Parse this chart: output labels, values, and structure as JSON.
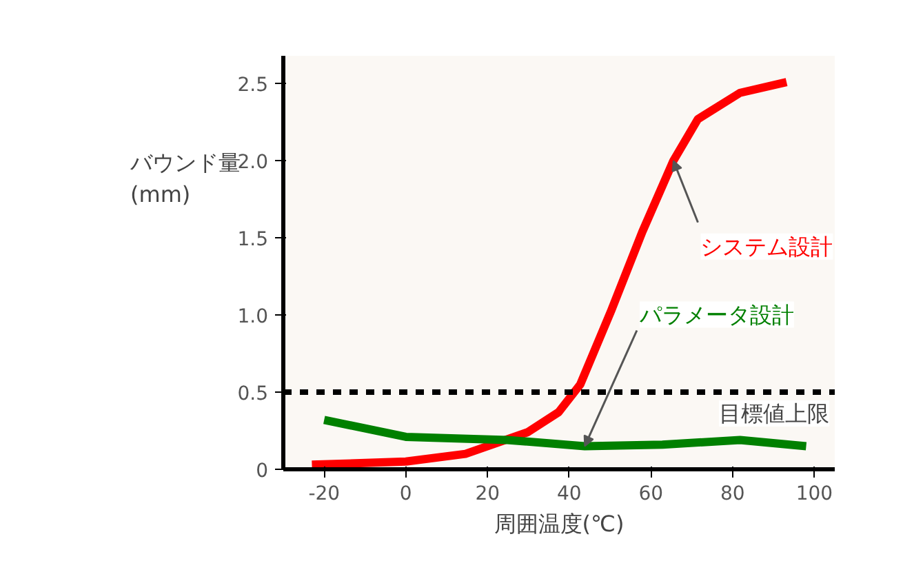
{
  "chart_data": {
    "type": "line",
    "xlabel": "周囲温度(℃)",
    "ylabel": "バウンド量 (mm)",
    "xlim": [
      -30,
      105
    ],
    "ylim": [
      0,
      2.68
    ],
    "xticks": [
      -20,
      0,
      20,
      40,
      60,
      80,
      100
    ],
    "yticks": [
      0,
      0.5,
      {
        "value": 1,
        "label": "1.0"
      },
      1.5,
      {
        "value": 2,
        "label": "2.0"
      },
      2.5
    ],
    "grid": false,
    "legend": false,
    "marker": "none",
    "line_style": "solid",
    "series": [
      {
        "name": "システム設計",
        "color": "#ff0000",
        "x": [
          -23,
          0,
          14.6,
          29.8,
          37.4,
          42.7,
          50.3,
          57.9,
          65.5,
          71.5,
          81.8,
          93.2
        ],
        "values": [
          0.03,
          0.05,
          0.1,
          0.24,
          0.37,
          0.55,
          1.03,
          1.54,
          2.0,
          2.27,
          2.44,
          2.51
        ]
      },
      {
        "name": "パラメータ設計",
        "color": "#008000",
        "x": [
          -20,
          0,
          24.8,
          43.8,
          62.8,
          81.8,
          98
        ],
        "values": [
          0.32,
          0.21,
          0.19,
          0.15,
          0.16,
          0.19,
          0.15
        ]
      }
    ],
    "ref_lines": [
      {
        "axis": "y",
        "value": 0.5,
        "label": "目標値上限",
        "color": "#000000",
        "line_style": "dashed"
      }
    ]
  }
}
